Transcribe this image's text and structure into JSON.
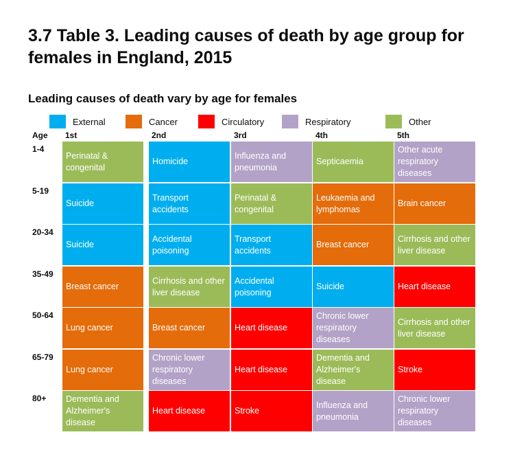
{
  "title": "3.7 Table 3. Leading causes of death by age group for females in England, 2015",
  "chart_data": {
    "type": "table",
    "subtitle": "Leading causes of death vary by age for females",
    "legend": [
      {
        "key": "external",
        "label": "External",
        "color": "#00aeef"
      },
      {
        "key": "cancer",
        "label": "Cancer",
        "color": "#e46c0a"
      },
      {
        "key": "circulatory",
        "label": "Circulatory",
        "color": "#ff0000"
      },
      {
        "key": "respiratory",
        "label": "Respiratory",
        "color": "#b3a2c7"
      },
      {
        "key": "other",
        "label": "Other",
        "color": "#9bbb59"
      }
    ],
    "row_header": "Age",
    "columns": [
      "1st",
      "2nd",
      "3rd",
      "4th",
      "5th"
    ],
    "rows": [
      {
        "age": "1-4",
        "cells": [
          {
            "text": "Perinatal & congenital",
            "category": "other"
          },
          {
            "text": "Homicide",
            "category": "external"
          },
          {
            "text": "Influenza and pneumonia",
            "category": "respiratory"
          },
          {
            "text": "Septicaemia",
            "category": "other"
          },
          {
            "text": "Other acute respiratory diseases",
            "category": "respiratory"
          }
        ]
      },
      {
        "age": "5-19",
        "cells": [
          {
            "text": "Suicide",
            "category": "external"
          },
          {
            "text": "Transport accidents",
            "category": "external"
          },
          {
            "text": "Perinatal & congenital",
            "category": "other"
          },
          {
            "text": "Leukaemia and lymphomas",
            "category": "cancer"
          },
          {
            "text": "Brain cancer",
            "category": "cancer"
          }
        ]
      },
      {
        "age": "20-34",
        "cells": [
          {
            "text": "Suicide",
            "category": "external"
          },
          {
            "text": "Accidental poisoning",
            "category": "external"
          },
          {
            "text": "Transport accidents",
            "category": "external"
          },
          {
            "text": "Breast cancer",
            "category": "cancer"
          },
          {
            "text": "Cirrhosis and other liver disease",
            "category": "other"
          }
        ]
      },
      {
        "age": "35-49",
        "cells": [
          {
            "text": "Breast cancer",
            "category": "cancer"
          },
          {
            "text": "Cirrhosis and other liver disease",
            "category": "other"
          },
          {
            "text": "Accidental poisoning",
            "category": "external"
          },
          {
            "text": "Suicide",
            "category": "external"
          },
          {
            "text": "Heart disease",
            "category": "circulatory"
          }
        ]
      },
      {
        "age": "50-64",
        "cells": [
          {
            "text": "Lung cancer",
            "category": "cancer"
          },
          {
            "text": "Breast cancer",
            "category": "cancer"
          },
          {
            "text": "Heart disease",
            "category": "circulatory"
          },
          {
            "text": "Chronic lower respiratory diseases",
            "category": "respiratory"
          },
          {
            "text": "Cirrhosis and other liver disease",
            "category": "other"
          }
        ]
      },
      {
        "age": "65-79",
        "cells": [
          {
            "text": "Lung cancer",
            "category": "cancer"
          },
          {
            "text": "Chronic lower respiratory diseases",
            "category": "respiratory"
          },
          {
            "text": "Heart disease",
            "category": "circulatory"
          },
          {
            "text": "Dementia and Alzheimer's disease",
            "category": "other"
          },
          {
            "text": "Stroke",
            "category": "circulatory"
          }
        ]
      },
      {
        "age": "80+",
        "cells": [
          {
            "text": "Dementia and Alzheimer's disease",
            "category": "other"
          },
          {
            "text": "Heart disease",
            "category": "circulatory"
          },
          {
            "text": "Stroke",
            "category": "circulatory"
          },
          {
            "text": "Influenza and pneumonia",
            "category": "respiratory"
          },
          {
            "text": "Chronic lower respiratory diseases",
            "category": "respiratory"
          }
        ]
      }
    ]
  }
}
